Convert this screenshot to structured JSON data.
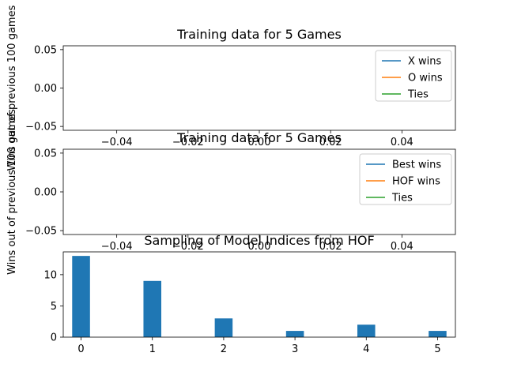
{
  "chart_data": [
    {
      "type": "line",
      "title": "Training data for 5 Games",
      "ylabel": "Wins out of previous 100 games",
      "xlim": [
        -0.055,
        0.055
      ],
      "ylim": [
        -0.055,
        0.055
      ],
      "x_ticks": [
        "−0.04",
        "−0.02",
        "0.00",
        "0.02",
        "0.04"
      ],
      "y_ticks": [
        "0.05",
        "0.00",
        "−0.05"
      ],
      "legend_position": "top-right",
      "series": [
        {
          "name": "X wins",
          "color": "#1f77b4",
          "x": [],
          "y": []
        },
        {
          "name": "O wins",
          "color": "#ff7f0e",
          "x": [],
          "y": []
        },
        {
          "name": "Ties",
          "color": "#2ca02c",
          "x": [],
          "y": []
        }
      ]
    },
    {
      "type": "line",
      "title": "Training data for 5 Games",
      "ylabel": "Wins out of previous 100 games",
      "xlim": [
        -0.055,
        0.055
      ],
      "ylim": [
        -0.055,
        0.055
      ],
      "x_ticks": [
        "−0.04",
        "−0.02",
        "0.00",
        "0.02",
        "0.04"
      ],
      "y_ticks": [
        "0.05",
        "0.00",
        "−0.05"
      ],
      "legend_position": "top-right",
      "series": [
        {
          "name": "Best wins",
          "color": "#1f77b4",
          "x": [],
          "y": []
        },
        {
          "name": "HOF wins",
          "color": "#ff7f0e",
          "x": [],
          "y": []
        },
        {
          "name": "Ties",
          "color": "#2ca02c",
          "x": [],
          "y": []
        }
      ]
    },
    {
      "type": "bar",
      "title": "Sampling of Model Indices from HOF",
      "categories": [
        0,
        1,
        2,
        3,
        4,
        5
      ],
      "values": [
        13,
        9,
        3,
        1,
        2,
        1
      ],
      "bar_color": "#1f77b4",
      "x_ticks": [
        "0",
        "1",
        "2",
        "3",
        "4",
        "5"
      ],
      "y_ticks": [
        "0",
        "5",
        "10"
      ],
      "xlim": [
        -0.25,
        5.25
      ],
      "ylim": [
        0,
        13.65
      ]
    }
  ]
}
